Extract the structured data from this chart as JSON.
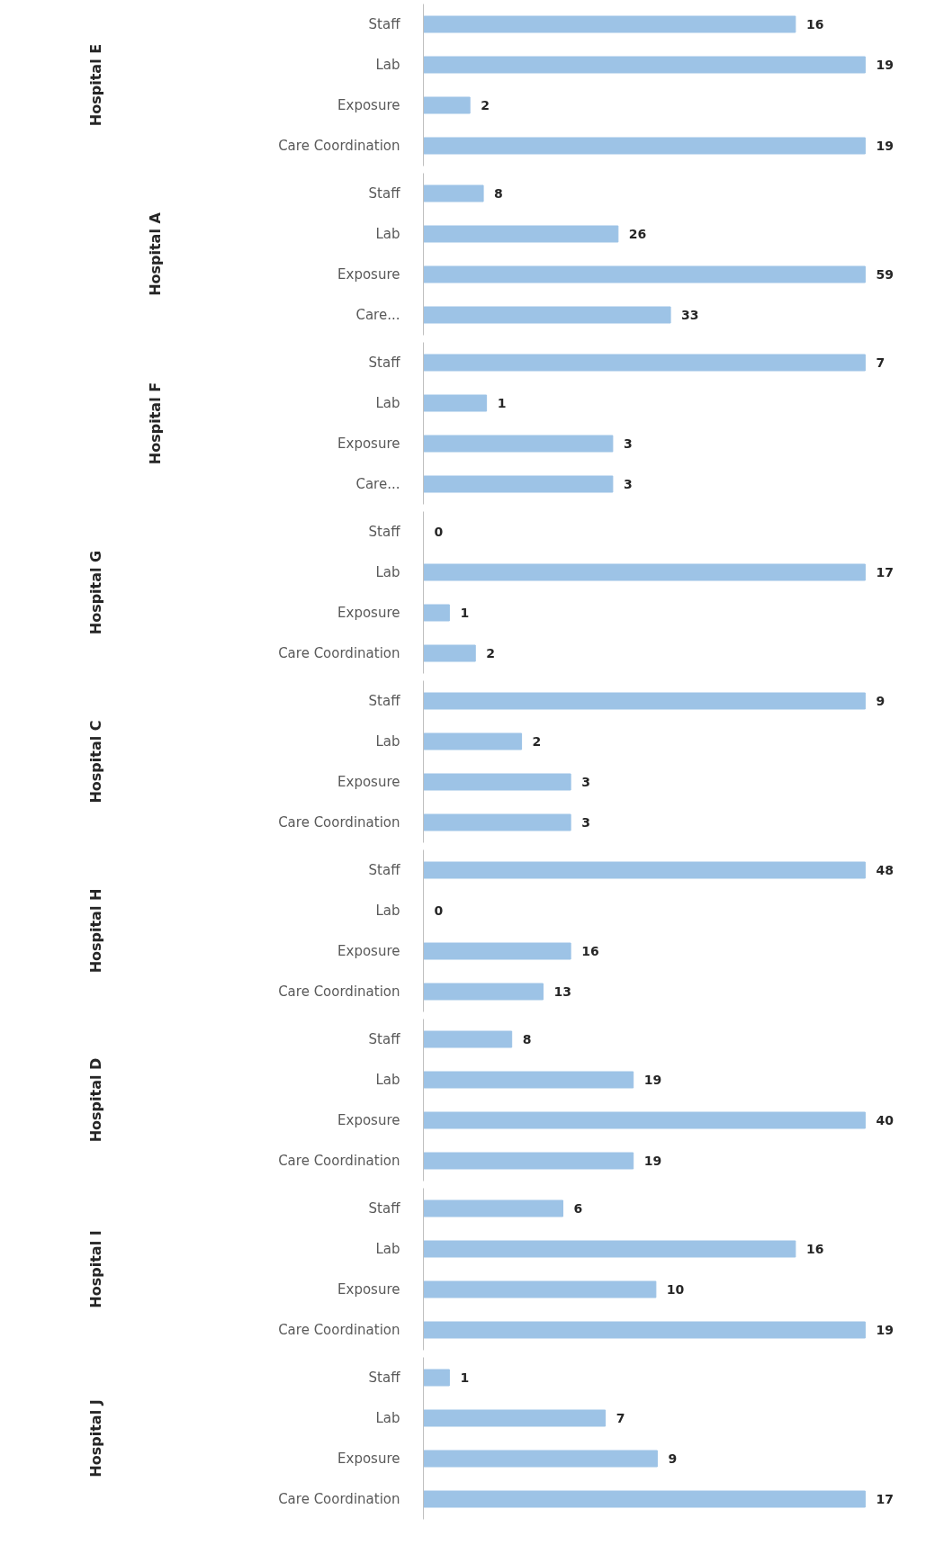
{
  "chart_data": [
    {
      "type": "bar",
      "orientation": "horizontal",
      "ylabel": "Hospital E",
      "categories": [
        "Staff",
        "Lab",
        "Exposure",
        "Care Coordination"
      ],
      "values": [
        16,
        19,
        2,
        19
      ],
      "color": "#9dc3e6",
      "data_labels": true
    },
    {
      "type": "bar",
      "orientation": "horizontal",
      "ylabel": "Hospital A",
      "categories": [
        "Staff",
        "Lab",
        "Exposure",
        "Care..."
      ],
      "values": [
        8,
        26,
        59,
        33
      ],
      "color": "#9dc3e6",
      "data_labels": true
    },
    {
      "type": "bar",
      "orientation": "horizontal",
      "ylabel": "Hospital F",
      "categories": [
        "Staff",
        "Lab",
        "Exposure",
        "Care..."
      ],
      "values": [
        7,
        1,
        3,
        3
      ],
      "color": "#9dc3e6",
      "data_labels": true
    },
    {
      "type": "bar",
      "orientation": "horizontal",
      "ylabel": "Hospital G",
      "categories": [
        "Staff",
        "Lab",
        "Exposure",
        "Care Coordination"
      ],
      "values": [
        0,
        17,
        1,
        2
      ],
      "color": "#9dc3e6",
      "data_labels": true
    },
    {
      "type": "bar",
      "orientation": "horizontal",
      "ylabel": "Hospital C",
      "categories": [
        "Staff",
        "Lab",
        "Exposure",
        "Care Coordination"
      ],
      "values": [
        9,
        2,
        3,
        3
      ],
      "color": "#9dc3e6",
      "data_labels": true
    },
    {
      "type": "bar",
      "orientation": "horizontal",
      "ylabel": "Hospital H",
      "categories": [
        "Staff",
        "Lab",
        "Exposure",
        "Care Coordination"
      ],
      "values": [
        48,
        0,
        16,
        13
      ],
      "color": "#9dc3e6",
      "data_labels": true
    },
    {
      "type": "bar",
      "orientation": "horizontal",
      "ylabel": "Hospital D",
      "categories": [
        "Staff",
        "Lab",
        "Exposure",
        "Care Coordination"
      ],
      "values": [
        8,
        19,
        40,
        19
      ],
      "color": "#9dc3e6",
      "data_labels": true
    },
    {
      "type": "bar",
      "orientation": "horizontal",
      "ylabel": "Hospital I",
      "categories": [
        "Staff",
        "Lab",
        "Exposure",
        "Care Coordination"
      ],
      "values": [
        6,
        16,
        10,
        19
      ],
      "color": "#9dc3e6",
      "data_labels": true
    },
    {
      "type": "bar",
      "orientation": "horizontal",
      "ylabel": "Hospital J",
      "categories": [
        "Staff",
        "Lab",
        "Exposure",
        "Care Coordination"
      ],
      "values": [
        1,
        7,
        9,
        17
      ],
      "color": "#9dc3e6",
      "data_labels": true
    }
  ]
}
